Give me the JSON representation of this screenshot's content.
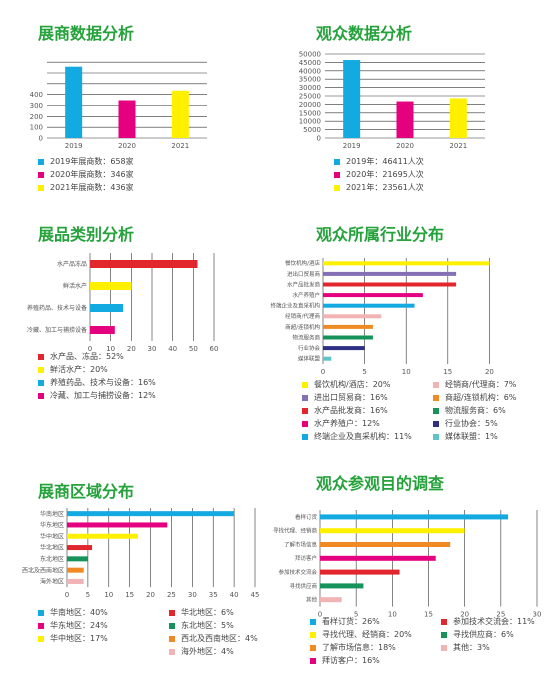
{
  "colors": {
    "title": "#25a23b",
    "cyan": "#13a9e1",
    "magenta": "#e5007f",
    "yellow": "#fff000",
    "red": "#e1262e",
    "grid": "#333333"
  },
  "chart_data": [
    {
      "type": "bar",
      "title": "展商数据分析",
      "categories": [
        "2019",
        "2020",
        "2021"
      ],
      "values": [
        658,
        346,
        436
      ],
      "bar_colors": [
        "#13a9e1",
        "#e5007f",
        "#fff000"
      ],
      "yticks": [
        0,
        100,
        200,
        300,
        400
      ],
      "ylim": [
        0,
        720
      ],
      "legend": [
        "2019年展商数：658家",
        "2020年展商数：346家",
        "2021年展商数：436家"
      ]
    },
    {
      "type": "bar",
      "title": "观众数据分析",
      "categories": [
        "2019",
        "2020",
        "2021"
      ],
      "values": [
        46411,
        21695,
        23561
      ],
      "bar_colors": [
        "#13a9e1",
        "#e5007f",
        "#fff000"
      ],
      "yticks": [
        0,
        5000,
        10000,
        15000,
        20000,
        25000,
        30000,
        35000,
        40000,
        45000,
        50000
      ],
      "ylim": [
        0,
        50000
      ],
      "legend": [
        "2019年：46411人次",
        "2020年：21695人次",
        "2021年：23561人次"
      ]
    },
    {
      "type": "bar",
      "orientation": "horizontal",
      "title": "展品类别分析",
      "categories": [
        "水产品冻品",
        "鲜活水产",
        "养殖药品、技术与设备",
        "冷藏、加工与捕捞设备"
      ],
      "values": [
        52,
        20,
        16,
        12
      ],
      "bar_colors": [
        "#e1262e",
        "#fff000",
        "#13a9e1",
        "#e5007f"
      ],
      "xticks": [
        0,
        10,
        20,
        30,
        40,
        50,
        60
      ],
      "xlim": [
        0,
        60
      ],
      "legend": [
        "水产品、冻品：52%",
        "鲜活水产：20%",
        "养殖药品、技术与设备：16%",
        "冷藏、加工与捕捞设备：12%"
      ]
    },
    {
      "type": "bar",
      "orientation": "horizontal",
      "title": "观众所属行业分布",
      "categories": [
        "餐饮机构/酒店",
        "进出口贸易商",
        "水产品批发商",
        "水产养殖户",
        "终端企业及直采机构",
        "经销商/代理商",
        "商超/连锁机构",
        "物流服务商",
        "行业协会",
        "媒体联盟"
      ],
      "values": [
        20,
        16,
        16,
        12,
        11,
        7,
        6,
        6,
        5,
        1
      ],
      "bar_colors": [
        "#fff000",
        "#8470b5",
        "#e1262e",
        "#e5007f",
        "#13a9e1",
        "#f2b3b5",
        "#f08a24",
        "#15935a",
        "#2e3083",
        "#5fc4c8"
      ],
      "xticks": [
        0,
        5,
        10,
        15,
        20
      ],
      "xlim": [
        0,
        25
      ],
      "legend": [
        "餐饮机构/酒店：20%",
        "经销商/代理商：7%",
        "进出口贸易商：16%",
        "商超/连锁机构：6%",
        "水产品批发商：16%",
        "物流服务商：6%",
        "水产养殖户：12%",
        "行业协会：5%",
        "终端企业及直采机构：11%",
        "媒体联盟：1%"
      ],
      "legend_colors": [
        "#fff000",
        "#f2b3b5",
        "#8470b5",
        "#f08a24",
        "#e1262e",
        "#15935a",
        "#e5007f",
        "#2e3083",
        "#13a9e1",
        "#5fc4c8"
      ]
    },
    {
      "type": "bar",
      "orientation": "horizontal",
      "title": "展商区域分布",
      "categories": [
        "华南地区",
        "华东地区",
        "华中地区",
        "华北地区",
        "东北地区",
        "西北及西南地区",
        "海外地区"
      ],
      "values": [
        40,
        24,
        17,
        6,
        5,
        4,
        4
      ],
      "bar_colors": [
        "#13a9e1",
        "#e5007f",
        "#fff000",
        "#e1262e",
        "#15935a",
        "#f08a24",
        "#f2b3b5"
      ],
      "xticks": [
        0,
        5,
        10,
        15,
        20,
        25,
        30,
        35,
        40,
        45
      ],
      "xlim": [
        0,
        45
      ],
      "legend": [
        "华南地区：40%",
        "华北地区：6%",
        "华东地区：24%",
        "东北地区：5%",
        "华中地区：17%",
        "西北及西南地区：4%",
        "",
        "海外地区：4%"
      ],
      "legend_colors": [
        "#13a9e1",
        "#e1262e",
        "#e5007f",
        "#15935a",
        "#fff000",
        "#f08a24",
        "",
        "#f2b3b5"
      ]
    },
    {
      "type": "bar",
      "orientation": "horizontal",
      "title": "观众参观目的调查",
      "categories": [
        "看样订货",
        "寻找代理、经销商",
        "了解市场信息",
        "拜访客户",
        "参加技术交流会",
        "寻找供应商",
        "其他"
      ],
      "values": [
        26,
        20,
        18,
        16,
        11,
        6,
        3
      ],
      "bar_colors": [
        "#13a9e1",
        "#fff000",
        "#f08a24",
        "#e5007f",
        "#e1262e",
        "#15935a",
        "#f2b3b5"
      ],
      "xticks": [
        0,
        5,
        10,
        15,
        20,
        25,
        30
      ],
      "xlim": [
        0,
        30
      ],
      "legend": [
        "看样订货：26%",
        "参加技术交流会：11%",
        "寻找代理、经销商：20%",
        "寻找供应商：6%",
        "了解市场信息：18%",
        "其他：3%",
        "拜访客户：16%",
        ""
      ],
      "legend_colors": [
        "#13a9e1",
        "#e1262e",
        "#fff000",
        "#15935a",
        "#f08a24",
        "#f2b3b5",
        "#e5007f",
        ""
      ]
    }
  ]
}
